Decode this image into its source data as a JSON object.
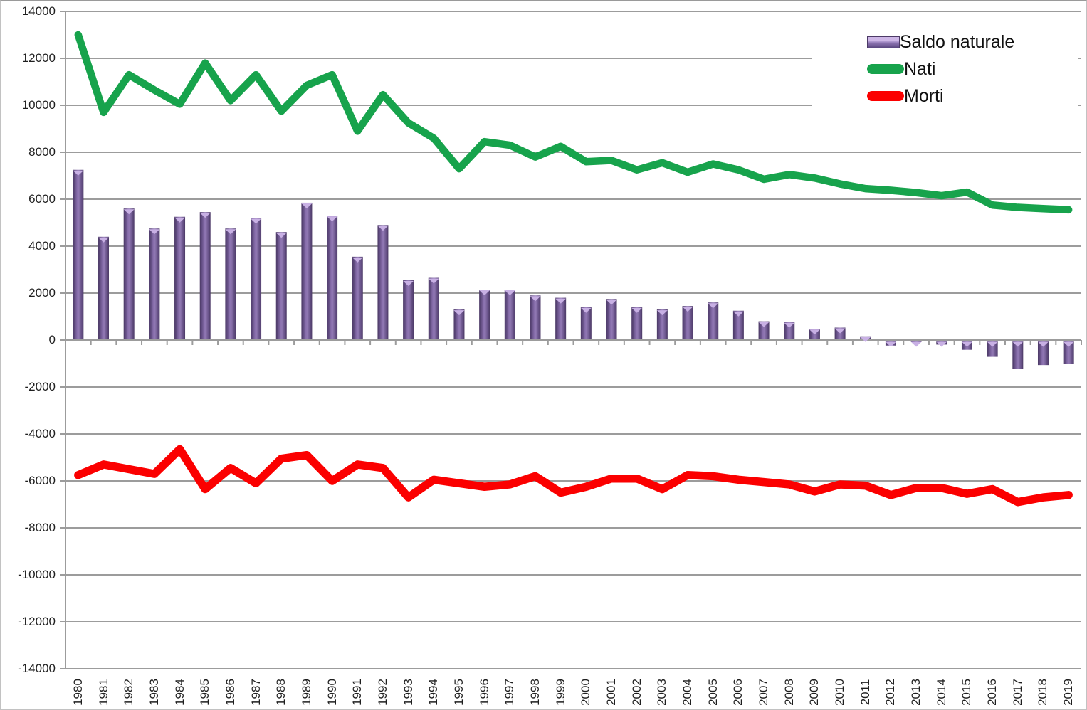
{
  "chart_data": {
    "type": "combo",
    "title": "",
    "x": [
      1980,
      1981,
      1982,
      1983,
      1984,
      1985,
      1986,
      1987,
      1988,
      1989,
      1990,
      1991,
      1992,
      1993,
      1994,
      1995,
      1996,
      1997,
      1998,
      1999,
      2000,
      2001,
      2002,
      2003,
      2004,
      2005,
      2006,
      2007,
      2008,
      2009,
      2010,
      2011,
      2012,
      2013,
      2014,
      2015,
      2016,
      2017,
      2018,
      2019
    ],
    "series": [
      {
        "name": "Saldo naturale",
        "type": "bar",
        "values": [
          7250,
          4400,
          5600,
          4750,
          5250,
          5450,
          4750,
          5200,
          4600,
          5850,
          5300,
          3550,
          4900,
          2550,
          2650,
          1300,
          2150,
          2150,
          1900,
          1800,
          1400,
          1750,
          1400,
          1300,
          1450,
          1600,
          1250,
          800,
          770,
          480,
          530,
          160,
          -220,
          -60,
          -180,
          -400,
          -700,
          -1200,
          -1050,
          -1000
        ]
      },
      {
        "name": "Nati",
        "type": "line",
        "values": [
          13000,
          9700,
          11300,
          10650,
          10050,
          11800,
          10200,
          11300,
          9750,
          10850,
          11300,
          8900,
          10450,
          9250,
          8600,
          7300,
          8450,
          8300,
          7800,
          8250,
          7600,
          7650,
          7250,
          7550,
          7150,
          7500,
          7250,
          6850,
          7050,
          6900,
          6650,
          6450,
          6380,
          6280,
          6150,
          6300,
          5750,
          5650,
          5600,
          5550
        ]
      },
      {
        "name": "Morti",
        "type": "line",
        "values": [
          -5750,
          -5300,
          -5500,
          -5700,
          -4650,
          -6350,
          -5450,
          -6100,
          -5050,
          -4900,
          -6000,
          -5300,
          -5450,
          -6700,
          -5950,
          -6100,
          -6250,
          -6150,
          -5800,
          -6500,
          -6250,
          -5900,
          -5900,
          -6350,
          -5750,
          -5800,
          -5950,
          -6050,
          -6150,
          -6450,
          -6150,
          -6200,
          -6600,
          -6300,
          -6300,
          -6550,
          -6350,
          -6900,
          -6700,
          -6600
        ]
      }
    ],
    "ylim": [
      -14000,
      14000
    ],
    "yticks": [
      14000,
      12000,
      10000,
      8000,
      6000,
      4000,
      2000,
      0,
      -2000,
      -4000,
      -6000,
      -8000,
      -10000,
      -12000,
      -14000
    ],
    "grid": true,
    "legend_position": "top-right"
  },
  "colors": {
    "bar_edge": "#4c3a66",
    "bar_body": "#7e64a4",
    "bar_highlight": "#9078b2",
    "bar_cap": "#c8b0e4",
    "nati": "#17a34c",
    "morti": "#fb0000",
    "grid": "#9c9c9c",
    "text": "#1f1f1f"
  }
}
